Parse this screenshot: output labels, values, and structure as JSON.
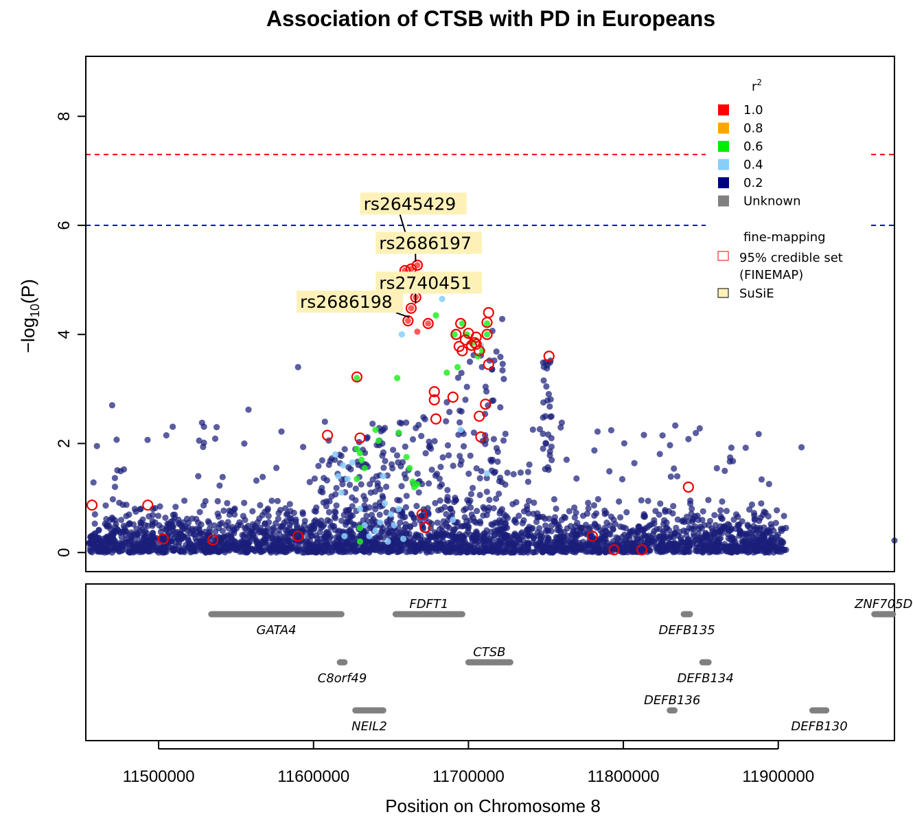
{
  "chart_data": {
    "type": "scatter",
    "title": "Association of CTSB with PD in Europeans",
    "xlabel": "Position on Chromosome 8",
    "ylabel_main": "−log",
    "ylabel_sub": "10",
    "ylabel_arg": "(P)",
    "xlim": [
      11453000,
      11975000
    ],
    "ylim": [
      -0.35,
      9.1
    ],
    "x_ticks": [
      11500000,
      11600000,
      11700000,
      11800000,
      11900000
    ],
    "x_tick_labels": [
      "11500000",
      "11600000",
      "11700000",
      "11800000",
      "11900000"
    ],
    "y_ticks": [
      0,
      2,
      4,
      6,
      8
    ],
    "y_tick_labels": [
      "0",
      "2",
      "4",
      "6",
      "8"
    ],
    "thresholds": [
      {
        "y": 7.3,
        "color": "#ff0000"
      },
      {
        "y": 6.0,
        "color": "#0000ee"
      }
    ],
    "legend": {
      "position": "top-right",
      "r2_title": "r",
      "r2_sup": "2",
      "items": [
        {
          "label": "1.0",
          "color": "#ff0000"
        },
        {
          "label": "0.8",
          "color": "#ffa500"
        },
        {
          "label": "0.6",
          "color": "#00ee00"
        },
        {
          "label": "0.4",
          "color": "#87cefa"
        },
        {
          "label": "0.2",
          "color": "#000080"
        },
        {
          "label": "Unknown",
          "color": "#808080"
        }
      ],
      "fm_title": "fine-mapping",
      "fm_items": [
        {
          "label1": "95% credible set",
          "label2": "(FINEMAP)",
          "kind": "circle"
        },
        {
          "label1": "SuSiE",
          "label2": "",
          "kind": "box"
        }
      ]
    },
    "lead_snps": [
      {
        "name": "rs2645429",
        "x": 11659000,
        "y": 5.75,
        "lx": 11662000,
        "ly": 6.4
      },
      {
        "name": "rs2686197",
        "x": 11665000,
        "y": 5.27,
        "lx": 11672000,
        "ly": 5.68
      },
      {
        "name": "rs2740451",
        "x": 11665000,
        "y": 4.5,
        "lx": 11672000,
        "ly": 4.95
      },
      {
        "name": "rs2686198",
        "x": 11661000,
        "y": 4.25,
        "lx": 11635000,
        "ly": 4.6
      }
    ],
    "green_points": [
      [
        11628000,
        1.9
      ],
      [
        11630000,
        1.82
      ],
      [
        11631000,
        1.7
      ],
      [
        11628000,
        1.35
      ],
      [
        11630000,
        0.45
      ],
      [
        11633000,
        1.55
      ],
      [
        11630000,
        0.2
      ],
      [
        11642000,
        2.05
      ],
      [
        11640000,
        2.25
      ],
      [
        11628000,
        3.2
      ],
      [
        11654000,
        3.2
      ],
      [
        11655000,
        2.2
      ],
      [
        11660000,
        1.75
      ],
      [
        11662000,
        1.55
      ],
      [
        11664000,
        1.3
      ],
      [
        11665000,
        1.2
      ],
      [
        11667000,
        1.25
      ],
      [
        11679000,
        4.35
      ],
      [
        11691000,
        4.0
      ],
      [
        11696000,
        4.2
      ],
      [
        11699000,
        4.0
      ],
      [
        11703000,
        3.85
      ],
      [
        11706000,
        3.6
      ],
      [
        11709000,
        3.7
      ],
      [
        11712000,
        4.0
      ],
      [
        11712000,
        4.2
      ],
      [
        11693000,
        3.4
      ],
      [
        11686000,
        3.3
      ]
    ],
    "lightblue_points": [
      [
        11614000,
        1.8
      ],
      [
        11619000,
        1.6
      ],
      [
        11616000,
        1.4
      ],
      [
        11618000,
        1.1
      ],
      [
        11625000,
        1.65
      ],
      [
        11622000,
        1.35
      ],
      [
        11630000,
        0.8
      ],
      [
        11633000,
        0.5
      ],
      [
        11636000,
        0.3
      ],
      [
        11640000,
        0.4
      ],
      [
        11643000,
        0.55
      ],
      [
        11645000,
        1.4
      ],
      [
        11646000,
        0.9
      ],
      [
        11650000,
        0.7
      ],
      [
        11655000,
        0.8
      ],
      [
        11652000,
        0.5
      ],
      [
        11657000,
        4.0
      ],
      [
        11683000,
        4.65
      ],
      [
        11690000,
        0.6
      ],
      [
        11695000,
        2.25
      ],
      [
        11708000,
        3.8
      ],
      [
        11712000,
        1.45
      ],
      [
        11658000,
        0.25
      ],
      [
        11648000,
        0.2
      ],
      [
        11620000,
        0.3
      ]
    ],
    "red_filled_points": [
      [
        11659000,
        5.73
      ],
      [
        11661000,
        5.75
      ],
      [
        11659000,
        5.17
      ],
      [
        11663000,
        5.2
      ],
      [
        11667000,
        5.27
      ],
      [
        11666000,
        4.68
      ],
      [
        11663000,
        4.48
      ],
      [
        11661000,
        4.25
      ],
      [
        11667000,
        4.05
      ],
      [
        11674000,
        4.2
      ]
    ],
    "credible_set": [
      [
        11457000,
        0.87
      ],
      [
        11493000,
        0.87
      ],
      [
        11503000,
        0.25
      ],
      [
        11535000,
        0.23
      ],
      [
        11590000,
        0.3
      ],
      [
        11609000,
        2.15
      ],
      [
        11630000,
        2.1
      ],
      [
        11628000,
        3.22
      ],
      [
        11659000,
        5.73
      ],
      [
        11661000,
        5.75
      ],
      [
        11659000,
        5.17
      ],
      [
        11663000,
        5.2
      ],
      [
        11667000,
        5.27
      ],
      [
        11666000,
        4.68
      ],
      [
        11663000,
        4.48
      ],
      [
        11661000,
        4.25
      ],
      [
        11674000,
        4.2
      ],
      [
        11678000,
        2.95
      ],
      [
        11678000,
        2.8
      ],
      [
        11679000,
        2.45
      ],
      [
        11690000,
        2.85
      ],
      [
        11695000,
        4.2
      ],
      [
        11692000,
        4.0
      ],
      [
        11700000,
        4.02
      ],
      [
        11698000,
        3.9
      ],
      [
        11696000,
        3.7
      ],
      [
        11694000,
        3.78
      ],
      [
        11702000,
        3.8
      ],
      [
        11704000,
        3.85
      ],
      [
        11705000,
        3.95
      ],
      [
        11707000,
        3.7
      ],
      [
        11712000,
        4.0
      ],
      [
        11712000,
        4.22
      ],
      [
        11713000,
        4.4
      ],
      [
        11713000,
        3.45
      ],
      [
        11707000,
        2.5
      ],
      [
        11711000,
        2.72
      ],
      [
        11708000,
        2.12
      ],
      [
        11670000,
        0.7
      ],
      [
        11672000,
        0.46
      ],
      [
        11752000,
        3.6
      ],
      [
        11780000,
        0.3
      ],
      [
        11794000,
        0.05
      ],
      [
        11812000,
        0.05
      ],
      [
        11842000,
        1.2
      ],
      [
        11705000,
        3.82
      ]
    ],
    "genes": [
      {
        "name": "GATA4",
        "start": 11534000,
        "end": 11618000,
        "row": 0,
        "label_pos": "below"
      },
      {
        "name": "FDFT1",
        "start": 11653000,
        "end": 11696000,
        "row": 0,
        "label_pos": "above"
      },
      {
        "name": "DEFB135",
        "start": 11839000,
        "end": 11843000,
        "row": 0,
        "label_pos": "below"
      },
      {
        "name": "ZNF705D",
        "start": 11962000,
        "end": 11974000,
        "row": 0,
        "label_pos": "above"
      },
      {
        "name": "CTSB",
        "start": 11700000,
        "end": 11727000,
        "row": 1,
        "label_pos": "above"
      },
      {
        "name": "C8orf49",
        "start": 11617000,
        "end": 11620000,
        "row": 1,
        "label_pos": "below"
      },
      {
        "name": "DEFB134",
        "start": 11851000,
        "end": 11855000,
        "row": 1,
        "label_pos": "below"
      },
      {
        "name": "NEIL2",
        "start": 11627000,
        "end": 11645000,
        "row": 2,
        "label_pos": "below"
      },
      {
        "name": "DEFB136",
        "start": 11830000,
        "end": 11833000,
        "row": 2,
        "label_pos": "above"
      },
      {
        "name": "DEFB130",
        "start": 11922000,
        "end": 11931000,
        "row": 2,
        "label_pos": "below"
      }
    ]
  }
}
